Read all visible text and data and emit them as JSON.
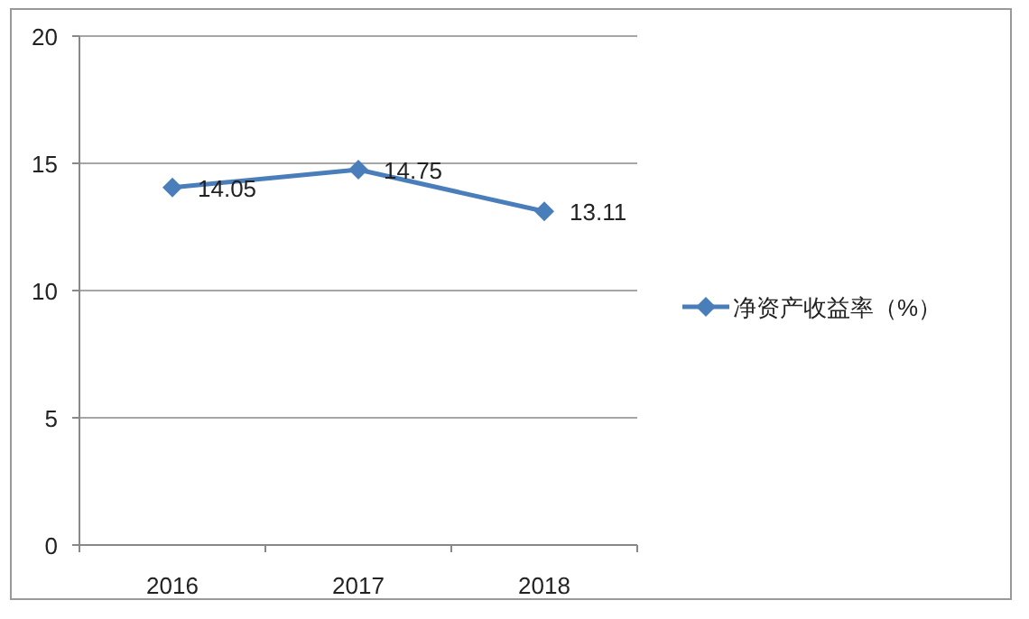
{
  "chart_data": {
    "type": "line",
    "categories": [
      "2016",
      "2017",
      "2018"
    ],
    "series": [
      {
        "name": "净资产收益率（%）",
        "color": "#4a7ebb",
        "values": [
          14.05,
          14.75,
          13.11
        ]
      }
    ],
    "ylim": [
      0,
      20
    ],
    "yticks": [
      0,
      5,
      10,
      15,
      20
    ],
    "grid": "y",
    "legend": "right",
    "marker": "diamond",
    "line_style": "solid",
    "data_labels": true
  }
}
